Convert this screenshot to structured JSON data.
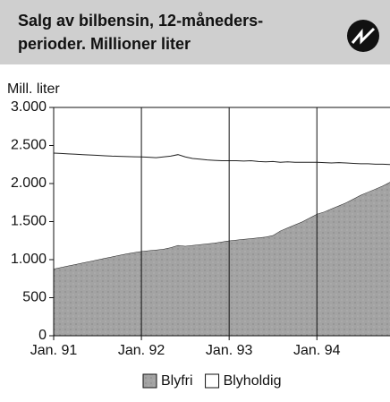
{
  "chart_data": {
    "type": "stacked_area",
    "title": [
      "Salg av bilbensin, 12-måneders-",
      "perioder. Millioner liter"
    ],
    "y_axis_label": "Mill. liter",
    "categories": [
      "Jan. 91",
      null,
      null,
      null,
      null,
      null,
      null,
      null,
      null,
      null,
      null,
      null,
      "Jan. 92",
      null,
      null,
      null,
      null,
      null,
      null,
      null,
      null,
      null,
      null,
      null,
      "Jan. 93",
      null,
      null,
      null,
      null,
      null,
      null,
      null,
      null,
      null,
      null,
      null,
      "Jan. 94",
      null,
      null,
      null,
      null,
      null,
      null,
      null,
      null,
      null,
      null
    ],
    "series": [
      {
        "name": "Blyfri",
        "color": "#a3a3a3",
        "values": [
          880,
          900,
          920,
          940,
          960,
          980,
          1000,
          1020,
          1040,
          1060,
          1080,
          1095,
          1110,
          1120,
          1130,
          1140,
          1160,
          1190,
          1180,
          1190,
          1200,
          1210,
          1220,
          1235,
          1250,
          1260,
          1270,
          1280,
          1290,
          1300,
          1320,
          1380,
          1420,
          1460,
          1500,
          1550,
          1600,
          1630,
          1670,
          1710,
          1750,
          1800,
          1850,
          1890,
          1930,
          1970,
          2020
        ]
      },
      {
        "name": "Blyholdig",
        "color": "#ffffff",
        "values": [
          1520,
          1495,
          1470,
          1445,
          1420,
          1395,
          1370,
          1345,
          1320,
          1298,
          1275,
          1257,
          1240,
          1225,
          1210,
          1210,
          1200,
          1190,
          1170,
          1140,
          1120,
          1100,
          1085,
          1065,
          1050,
          1040,
          1025,
          1020,
          1000,
          985,
          970,
          900,
          865,
          820,
          780,
          730,
          680,
          645,
          600,
          565,
          520,
          465,
          410,
          370,
          325,
          285,
          230
        ]
      }
    ],
    "ylim": [
      0,
      3000
    ],
    "yticks": [
      0,
      500,
      {
        "value": 1000,
        "label": "1.000"
      },
      {
        "value": 1500,
        "label": "1.500"
      },
      {
        "value": 2000,
        "label": "2.000"
      },
      {
        "value": 2500,
        "label": "2.500"
      },
      {
        "value": 3000,
        "label": "3.000"
      }
    ],
    "legend": "bottom"
  }
}
